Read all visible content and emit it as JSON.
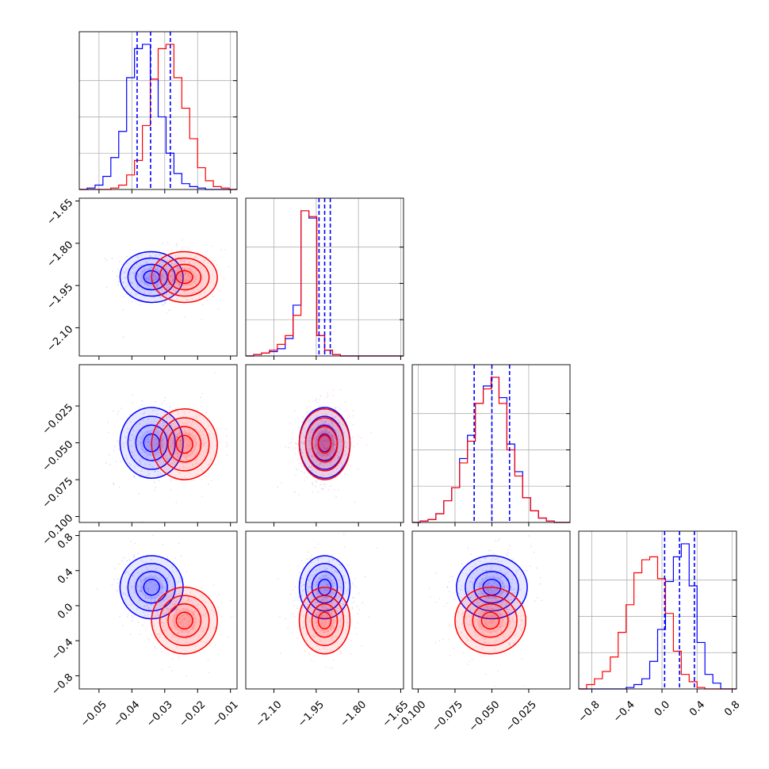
{
  "chart_data": {
    "type": "corner",
    "grid": true,
    "colors": {
      "series_a": "#0000ff",
      "series_b": "#ff0000"
    },
    "parameters": [
      {
        "index": 0,
        "range": [
          -0.056,
          -0.008
        ],
        "ticks": [
          {
            "v": -0.05,
            "label": "−0.05"
          },
          {
            "v": -0.04,
            "label": "−0.04"
          },
          {
            "v": -0.03,
            "label": "−0.03"
          },
          {
            "v": -0.02,
            "label": "−0.02"
          },
          {
            "v": -0.01,
            "label": "−0.01"
          }
        ]
      },
      {
        "index": 1,
        "range": [
          -2.2,
          -1.64
        ],
        "ticks": [
          {
            "v": -2.1,
            "label": "−2.10"
          },
          {
            "v": -1.95,
            "label": "−1.95"
          },
          {
            "v": -1.8,
            "label": "−1.80"
          },
          {
            "v": -1.65,
            "label": "−1.65"
          }
        ]
      },
      {
        "index": 2,
        "range": [
          -0.104,
          0.003
        ],
        "ticks": [
          {
            "v": -0.1,
            "label": "−0.100"
          },
          {
            "v": -0.075,
            "label": "−0.075"
          },
          {
            "v": -0.05,
            "label": "−0.050"
          },
          {
            "v": -0.025,
            "label": "−0.025"
          }
        ]
      },
      {
        "index": 3,
        "range": [
          -0.95,
          0.85
        ],
        "ticks": [
          {
            "v": -0.8,
            "label": "−0.8"
          },
          {
            "v": -0.4,
            "label": "−0.4"
          },
          {
            "v": 0.0,
            "label": "0.0"
          },
          {
            "v": 0.4,
            "label": "0.4"
          },
          {
            "v": 0.8,
            "label": "0.8"
          }
        ]
      }
    ],
    "series": [
      {
        "key": "series_a",
        "color": "#0000ff",
        "means": [
          -0.034,
          -1.92,
          -0.05,
          0.21
        ],
        "sigmas": [
          0.0048,
          0.045,
          0.012,
          0.18
        ],
        "correlations": [
          [
            0,
            1,
            -0.05
          ],
          [
            0,
            2,
            0.05
          ],
          [
            0,
            3,
            -0.05
          ],
          [
            1,
            2,
            0.02
          ],
          [
            1,
            3,
            0.0
          ],
          [
            2,
            3,
            0.0
          ]
        ],
        "histograms": [
          {
            "edges": [
              -0.056,
              -0.008
            ],
            "counts": [
              0,
              1,
              3,
              9,
              22,
              40,
              77,
              97,
              100,
              76,
              50,
              25,
              11,
              4,
              2,
              1,
              0,
              0,
              0,
              0
            ]
          },
          {
            "edges": [
              -2.2,
              -1.64
            ],
            "counts": [
              0,
              1,
              2,
              3,
              5,
              12,
              35,
              100,
              95,
              14,
              4,
              1,
              0,
              0,
              0,
              0,
              0,
              0,
              0,
              0
            ]
          },
          {
            "edges": [
              -0.104,
              0.003
            ],
            "counts": [
              0,
              1,
              2,
              6,
              15,
              24,
              44,
              60,
              82,
              94,
              100,
              86,
              54,
              35,
              17,
              8,
              3,
              1,
              0,
              0
            ]
          },
          {
            "edges": [
              -0.95,
              0.85
            ],
            "counts": [
              0,
              0,
              0,
              0,
              0,
              0,
              1,
              3,
              7,
              19,
              41,
              74,
              91,
              100,
              71,
              32,
              10,
              4,
              0,
              0
            ]
          }
        ],
        "quantile_lines": [
          [
            -0.0384,
            -0.0343,
            -0.0283
          ],
          [
            -1.94,
            -1.92,
            -1.9
          ],
          [
            -0.062,
            -0.05,
            -0.038
          ],
          [
            0.03,
            0.2,
            0.37
          ]
        ]
      },
      {
        "key": "series_b",
        "color": "#ff0000",
        "means": [
          -0.024,
          -1.92,
          -0.051,
          -0.17
        ],
        "sigmas": [
          0.005,
          0.045,
          0.012,
          0.19
        ],
        "correlations": [
          [
            0,
            1,
            -0.05
          ],
          [
            0,
            2,
            0.05
          ],
          [
            0,
            3,
            -0.05
          ],
          [
            1,
            2,
            0.02
          ],
          [
            1,
            3,
            0.0
          ],
          [
            2,
            3,
            0.0
          ]
        ],
        "histograms": [
          {
            "edges": [
              -0.056,
              -0.008
            ],
            "counts": [
              0,
              0,
              0,
              0,
              1,
              3,
              10,
              20,
              44,
              76,
              97,
              100,
              77,
              56,
              35,
              15,
              6,
              2,
              1,
              0
            ]
          },
          {
            "edges": [
              -2.2,
              -1.64
            ],
            "counts": [
              0,
              1,
              2,
              4,
              8,
              14,
              28,
              100,
              96,
              14,
              4,
              1,
              0,
              0,
              0,
              0,
              0,
              0,
              0,
              0
            ]
          },
          {
            "edges": [
              -0.104,
              0.003
            ],
            "counts": [
              0,
              1,
              2,
              6,
              15,
              24,
              41,
              56,
              82,
              92,
              100,
              82,
              50,
              32,
              17,
              8,
              3,
              1,
              0,
              0
            ]
          },
          {
            "edges": [
              -0.95,
              0.85
            ],
            "counts": [
              0,
              3,
              7,
              12,
              22,
              39,
              58,
              80,
              89,
              91,
              76,
              52,
              26,
              10,
              5,
              1,
              0,
              0,
              0,
              0
            ]
          }
        ]
      }
    ]
  }
}
